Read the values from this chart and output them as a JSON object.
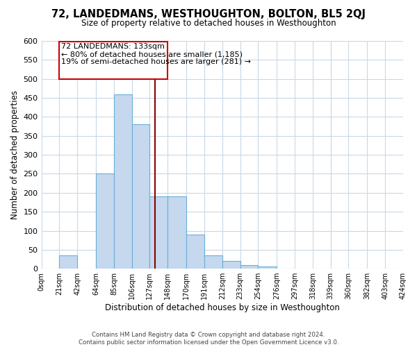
{
  "title": "72, LANDEDMANS, WESTHOUGHTON, BOLTON, BL5 2QJ",
  "subtitle": "Size of property relative to detached houses in Westhoughton",
  "xlabel": "Distribution of detached houses by size in Westhoughton",
  "ylabel": "Number of detached properties",
  "bar_color": "#c5d8ee",
  "bar_edge_color": "#6baed6",
  "bin_edges": [
    0,
    21,
    42,
    64,
    85,
    106,
    127,
    148,
    170,
    191,
    212,
    233,
    254,
    276,
    297,
    318,
    339,
    360,
    382,
    403,
    424
  ],
  "bar_heights": [
    0,
    35,
    0,
    250,
    460,
    380,
    190,
    190,
    90,
    35,
    20,
    10,
    5,
    1,
    0,
    0,
    0,
    0,
    0,
    0
  ],
  "tick_labels": [
    "0sqm",
    "21sqm",
    "42sqm",
    "64sqm",
    "85sqm",
    "106sqm",
    "127sqm",
    "148sqm",
    "170sqm",
    "191sqm",
    "212sqm",
    "233sqm",
    "254sqm",
    "276sqm",
    "297sqm",
    "318sqm",
    "339sqm",
    "360sqm",
    "382sqm",
    "403sqm",
    "424sqm"
  ],
  "property_size": 133,
  "vline_color": "#8b0000",
  "annotation_title": "72 LANDEDMANS: 133sqm",
  "annotation_line1": "← 80% of detached houses are smaller (1,185)",
  "annotation_line2": "19% of semi-detached houses are larger (281) →",
  "annotation_box_color": "#ffffff",
  "annotation_box_edge": "#cc0000",
  "ylim": [
    0,
    600
  ],
  "yticks": [
    0,
    50,
    100,
    150,
    200,
    250,
    300,
    350,
    400,
    450,
    500,
    550,
    600
  ],
  "footer1": "Contains HM Land Registry data © Crown copyright and database right 2024.",
  "footer2": "Contains public sector information licensed under the Open Government Licence v3.0.",
  "background_color": "#ffffff",
  "grid_color": "#c8d8e8"
}
